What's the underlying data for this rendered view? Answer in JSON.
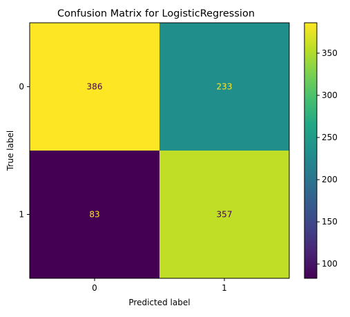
{
  "chart_data": {
    "type": "heatmap",
    "title": "Confusion Matrix for LogisticRegression",
    "xlabel": "Predicted label",
    "ylabel": "True label",
    "x_categories": [
      "0",
      "1"
    ],
    "y_categories": [
      "0",
      "1"
    ],
    "values": [
      [
        386,
        233
      ],
      [
        83,
        357
      ]
    ],
    "colormap": "viridis",
    "colorbar": {
      "min": 83,
      "max": 386,
      "ticks": [
        100,
        150,
        200,
        250,
        300,
        350
      ]
    },
    "text_colors": {
      "on_dark": "#fde725",
      "on_light": "#440154"
    }
  }
}
